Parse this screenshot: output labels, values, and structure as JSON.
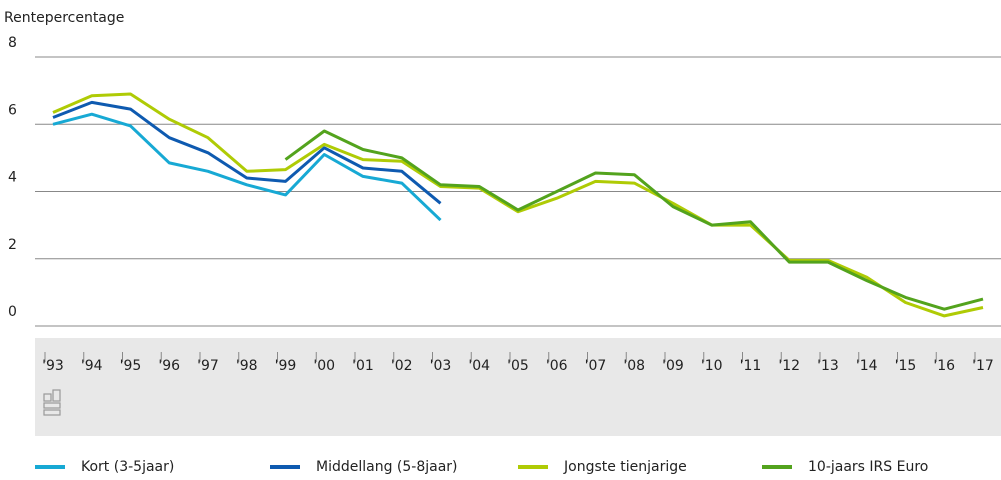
{
  "chart_data": {
    "type": "line",
    "y_label": "Rentepercentage",
    "categories": [
      "'93",
      "'94",
      "'95",
      "'96",
      "'97",
      "'98",
      "'99",
      "'00",
      "'01",
      "'02",
      "'03",
      "'04",
      "'05",
      "'06",
      "'07",
      "'08",
      "'09",
      "'10",
      "'11",
      "'12",
      "'13",
      "'14",
      "'15",
      "'16",
      "'17"
    ],
    "ylim": [
      0,
      8
    ],
    "yticks": [
      0,
      2,
      4,
      6,
      8
    ],
    "grid": true,
    "legend": "bottom",
    "series": [
      {
        "name": "Kort (3-5jaar)",
        "color": "#17a9d4",
        "values": [
          6.0,
          6.3,
          5.95,
          4.85,
          4.6,
          4.2,
          3.9,
          5.1,
          4.45,
          4.25,
          3.15,
          null,
          null,
          null,
          null,
          null,
          null,
          null,
          null,
          null,
          null,
          null,
          null,
          null,
          null
        ]
      },
      {
        "name": "Middellang (5-8jaar)",
        "color": "#0e5ab0",
        "values": [
          6.2,
          6.65,
          6.45,
          5.6,
          5.15,
          4.4,
          4.3,
          5.3,
          4.7,
          4.6,
          3.65,
          null,
          null,
          null,
          null,
          null,
          null,
          null,
          null,
          null,
          null,
          null,
          null,
          null,
          null
        ]
      },
      {
        "name": "Jongste tienjarige",
        "color": "#afcb05",
        "values": [
          6.35,
          6.85,
          6.9,
          6.15,
          5.6,
          4.6,
          4.65,
          5.4,
          4.95,
          4.9,
          4.15,
          4.1,
          3.4,
          3.8,
          4.3,
          4.25,
          3.65,
          3.0,
          3.0,
          1.95,
          1.95,
          1.45,
          0.7,
          0.3,
          0.55
        ]
      },
      {
        "name": "10-jaars IRS Euro",
        "color": "#53a31d",
        "values": [
          null,
          null,
          null,
          null,
          null,
          null,
          4.95,
          5.8,
          5.25,
          5.0,
          4.2,
          4.15,
          3.45,
          4.0,
          4.55,
          4.5,
          3.55,
          3.0,
          3.1,
          1.9,
          1.9,
          1.35,
          0.85,
          0.5,
          0.8
        ]
      }
    ]
  }
}
